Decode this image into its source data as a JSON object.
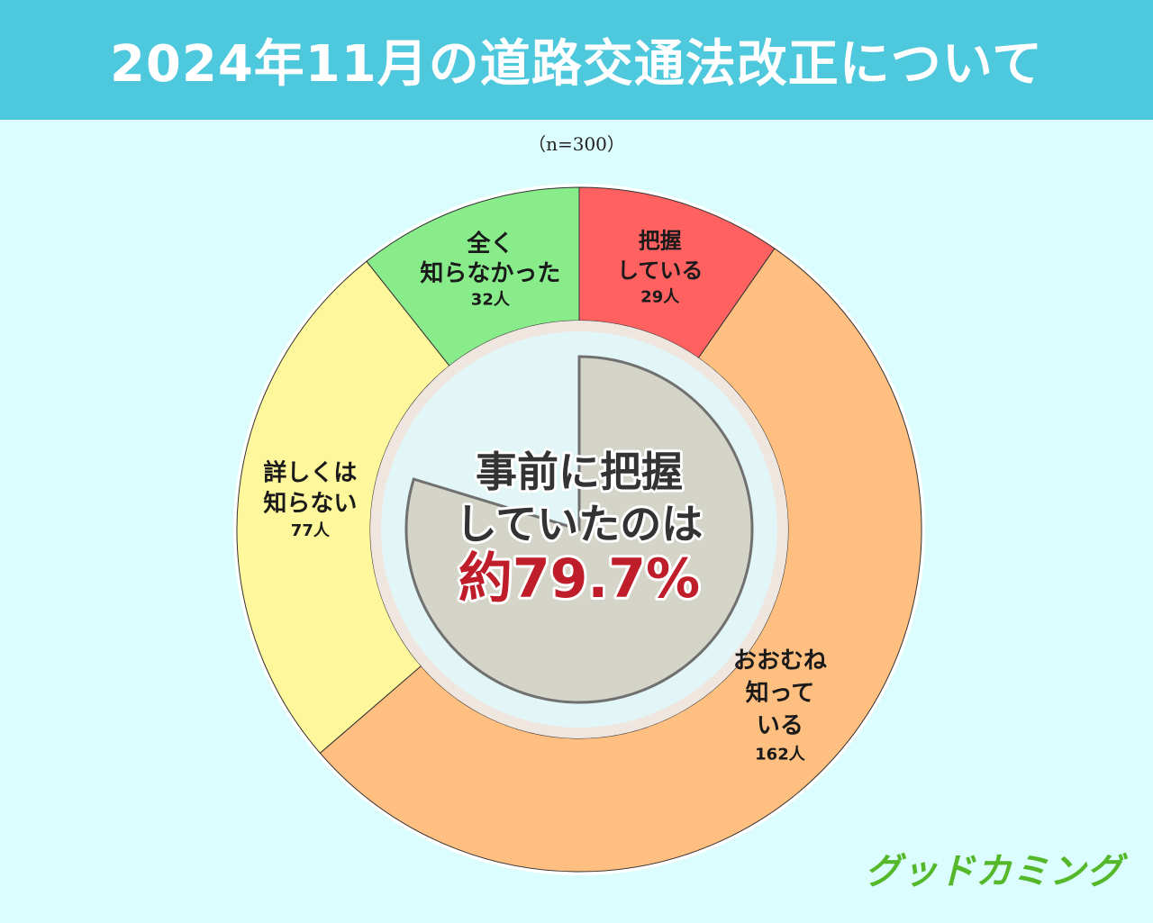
{
  "header": {
    "title": "2024年11月の道路交通法改正について"
  },
  "sample_note": "（n=300）",
  "center": {
    "line1": "事前に把握",
    "line2": "していたのは",
    "percent": "約79.7%",
    "fraction": 0.797
  },
  "logo": {
    "text": "グッドカミング"
  },
  "colors": {
    "background": "#dcfdfd",
    "header": "#4ec8dc",
    "center_disc": "#e2f5f7",
    "center_pie": "#d4d4c8",
    "accent_red": "#c01d2a"
  },
  "chart_data": {
    "type": "pie",
    "title": "2024年11月の道路交通法改正について",
    "total": 300,
    "start": "top",
    "direction": "clockwise",
    "slices": [
      {
        "label_lines": [
          "把握",
          "している"
        ],
        "count": "29人",
        "value": 29,
        "color": "#ff6161"
      },
      {
        "label_lines": [
          "おおむね",
          "知って",
          "いる"
        ],
        "count": "162人",
        "value": 162,
        "color": "#ffbf80"
      },
      {
        "label_lines": [
          "詳しくは",
          "知らない"
        ],
        "count": "77人",
        "value": 77,
        "color": "#fff79b"
      },
      {
        "label_lines": [
          "全く",
          "知らなかった"
        ],
        "count": "32人",
        "value": 32,
        "color": "#88ec8a"
      }
    ]
  }
}
